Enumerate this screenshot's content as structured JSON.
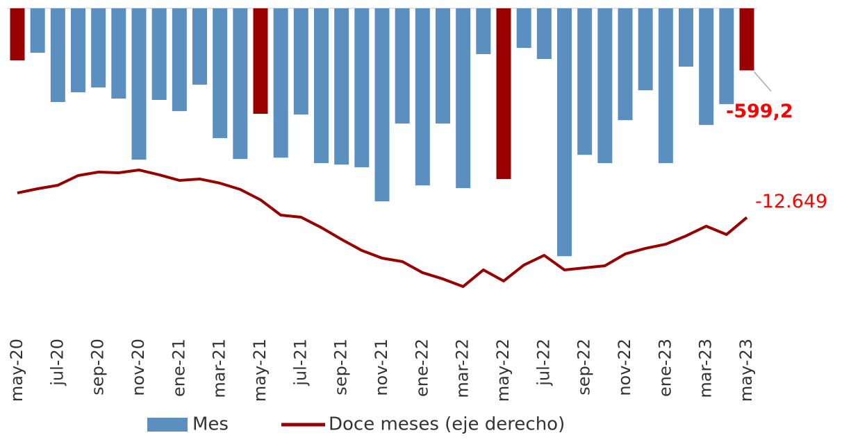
{
  "chart_data": {
    "type": "bar_line",
    "categories": [
      "may-20",
      null,
      "jul-20",
      null,
      "sep-20",
      null,
      "nov-20",
      null,
      "ene-21",
      null,
      "mar-21",
      null,
      "may-21",
      null,
      "jul-21",
      null,
      "sep-21",
      null,
      "nov-21",
      null,
      "ene-22",
      null,
      "mar-22",
      null,
      "may-22",
      null,
      "jul-22",
      null,
      "sep-22",
      null,
      "nov-22",
      null,
      "ene-23",
      null,
      "mar-23",
      null,
      "may-23"
    ],
    "series": [
      {
        "name": "Mes",
        "type": "bar",
        "color": "#5b8fbf",
        "axis": "y",
        "colors": [
          "#990000",
          "#5b8fbf",
          "#5b8fbf",
          "#5b8fbf",
          "#5b8fbf",
          "#5b8fbf",
          "#5b8fbf",
          "#5b8fbf",
          "#5b8fbf",
          "#5b8fbf",
          "#5b8fbf",
          "#5b8fbf",
          "#990000",
          "#5b8fbf",
          "#5b8fbf",
          "#5b8fbf",
          "#5b8fbf",
          "#5b8fbf",
          "#5b8fbf",
          "#5b8fbf",
          "#5b8fbf",
          "#5b8fbf",
          "#5b8fbf",
          "#5b8fbf",
          "#990000",
          "#5b8fbf",
          "#5b8fbf",
          "#5b8fbf",
          "#5b8fbf",
          "#5b8fbf",
          "#5b8fbf",
          "#5b8fbf",
          "#5b8fbf",
          "#5b8fbf",
          "#5b8fbf",
          "#5b8fbf",
          "#990000"
        ],
        "values": [
          -502,
          -429,
          -904,
          -810,
          -764,
          -871,
          -1461,
          -884,
          -992,
          -737,
          -1253,
          -1454,
          -1018,
          -1441,
          -1025,
          -1494,
          -1508,
          -1534,
          -1863,
          -1112,
          -1709,
          -1112,
          -1735,
          -442,
          -1648,
          -382,
          -489,
          -2392,
          -1414,
          -1494,
          -1079,
          -791,
          -1494,
          -563,
          -1126,
          -925,
          -599.2
        ],
        "value_labels": [
          null,
          null,
          null,
          null,
          null,
          null,
          null,
          null,
          null,
          null,
          null,
          null,
          null,
          null,
          null,
          null,
          null,
          null,
          null,
          null,
          null,
          null,
          null,
          null,
          null,
          null,
          null,
          null,
          null,
          null,
          null,
          null,
          null,
          null,
          null,
          null,
          "-599,2"
        ]
      },
      {
        "name": "Doce meses (eje derecho)",
        "type": "line",
        "color": "#990000",
        "axis": "y2",
        "values": [
          -11164,
          -10910,
          -10700,
          -10113,
          -9903,
          -9945,
          -9777,
          -10070,
          -10406,
          -10322,
          -10574,
          -10952,
          -11581,
          -12504,
          -12630,
          -13259,
          -13973,
          -14644,
          -15106,
          -15316,
          -15987,
          -16364,
          -16826,
          -15819,
          -16490,
          -15525,
          -14938,
          -15819,
          -15693,
          -15567,
          -14854,
          -14518,
          -14266,
          -13763,
          -13175,
          -13679,
          -12649
        ],
        "value_labels": [
          null,
          null,
          null,
          null,
          null,
          null,
          null,
          null,
          null,
          null,
          null,
          null,
          null,
          null,
          null,
          null,
          null,
          null,
          null,
          null,
          null,
          null,
          null,
          null,
          null,
          null,
          null,
          null,
          null,
          null,
          null,
          null,
          null,
          null,
          null,
          null,
          "-12.649"
        ]
      }
    ],
    "ylim": [
      -3000,
      0
    ],
    "y2lim": [
      -18800,
      0
    ]
  }
}
